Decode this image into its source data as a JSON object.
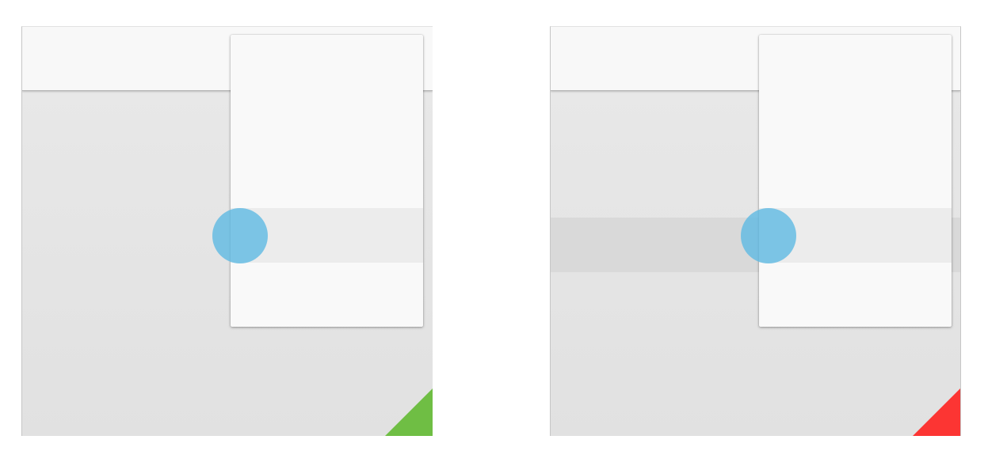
{
  "panels": [
    {
      "id": "left",
      "row_highlighted": false,
      "status": "pass",
      "status_color": "#6fbe44"
    },
    {
      "id": "right",
      "row_highlighted": true,
      "status": "fail",
      "status_color": "#fc3533"
    }
  ],
  "colors": {
    "toolbar": "#f8f8f8",
    "content": "#e5e5e5",
    "menu": "#f9f9f9",
    "menu_item_hover": "#ececec",
    "row_highlight": "#d9d9d9",
    "touch_indicator": "#5bb8e3"
  },
  "icons": {
    "touch_indicator": "touch-point-icon",
    "status_corner": "status-triangle-icon"
  }
}
